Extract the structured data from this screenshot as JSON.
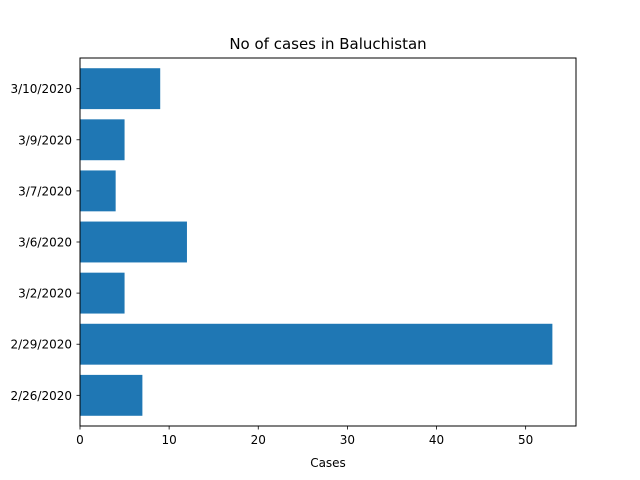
{
  "chart_data": {
    "type": "bar",
    "orientation": "horizontal",
    "title": "No of cases in Baluchistan",
    "xlabel": "Cases",
    "ylabel": "",
    "categories": [
      "2/26/2020",
      "2/29/2020",
      "3/2/2020",
      "3/6/2020",
      "3/7/2020",
      "3/9/2020",
      "3/10/2020"
    ],
    "values": [
      7,
      53,
      5,
      12,
      4,
      5,
      9
    ],
    "xlim": [
      0,
      55.65
    ],
    "xticks": [
      0,
      10,
      20,
      30,
      40,
      50
    ],
    "grid": false,
    "legend": "none",
    "bar_color": "#1f77b4"
  }
}
